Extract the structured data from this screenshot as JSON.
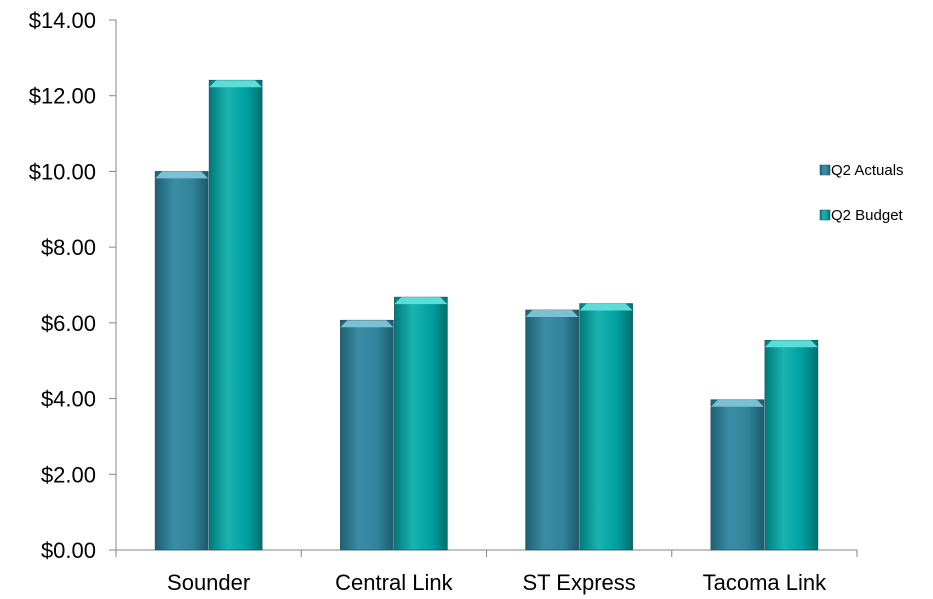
{
  "chart_data": {
    "type": "bar",
    "title": "",
    "xlabel": "",
    "ylabel": "",
    "categories": [
      "Sounder",
      "Central Link",
      "ST Express",
      "Tacoma Link"
    ],
    "series": [
      {
        "name": "Q2 Actuals",
        "values": [
          10.0,
          6.07,
          6.34,
          3.97
        ],
        "color": "#31849B"
      },
      {
        "name": "Q2 Budget",
        "values": [
          12.41,
          6.68,
          6.51,
          5.54
        ],
        "color": "#00A0A0"
      }
    ],
    "ylim": [
      0,
      14
    ],
    "y_ticks": [
      "$0.00",
      "$2.00",
      "$4.00",
      "$6.00",
      "$8.00",
      "$10.00",
      "$12.00",
      "$14.00"
    ],
    "grid": false,
    "legend_position": "right"
  }
}
